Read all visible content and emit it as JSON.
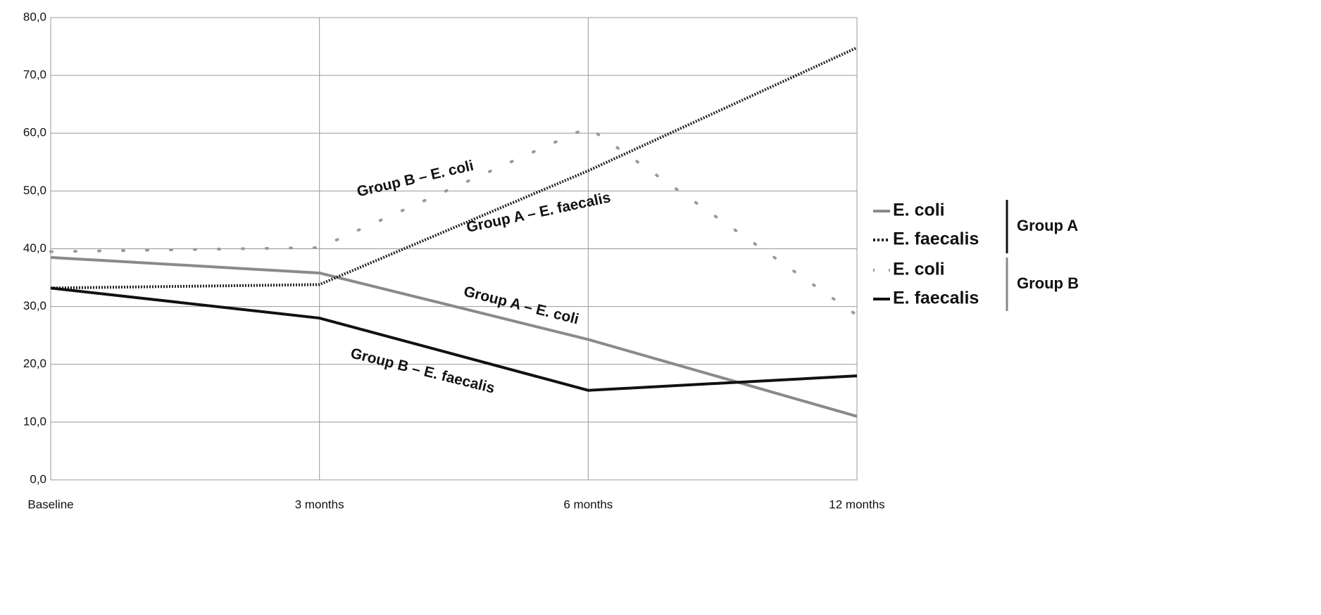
{
  "chart_data": {
    "type": "line",
    "categories": [
      "Baseline",
      "3 months",
      "6 months",
      "12 months"
    ],
    "series": [
      {
        "name": "E. coli",
        "color": "#8a8a8a",
        "style": "solid",
        "values": [
          38.5,
          35.8,
          24.3,
          11.0
        ]
      },
      {
        "name": "E. faecalis",
        "color": "#222222",
        "style": "dotted",
        "values": [
          33.2,
          33.8,
          53.5,
          74.8
        ]
      },
      {
        "name": "E. coli",
        "color": "#9a9a9a",
        "style": "sparse",
        "values": [
          39.5,
          40.2,
          61.0,
          28.5
        ]
      },
      {
        "name": "E. faecalis",
        "color": "#111111",
        "style": "solid",
        "values": [
          33.2,
          28.0,
          15.5,
          18.0
        ]
      }
    ],
    "legend_groups": [
      "Group A",
      "Group B"
    ],
    "annotations": [
      "Group B – E. coli",
      "Group A – E. faecalis",
      "Group A – E. coli",
      "Group B – E. faecalis"
    ],
    "ylim": [
      0,
      80
    ],
    "yticks": [
      {
        "value": 0,
        "label": "0,0"
      },
      {
        "value": 10,
        "label": "10,0"
      },
      {
        "value": 20,
        "label": "20,0"
      },
      {
        "value": 30,
        "label": "30,0"
      },
      {
        "value": 40,
        "label": "40,0"
      },
      {
        "value": 50,
        "label": "50,0"
      },
      {
        "value": 60,
        "label": "60,0"
      },
      {
        "value": 70,
        "label": "70,0"
      },
      {
        "value": 80,
        "label": "80,0"
      }
    ],
    "grid": true,
    "legend": "right"
  }
}
